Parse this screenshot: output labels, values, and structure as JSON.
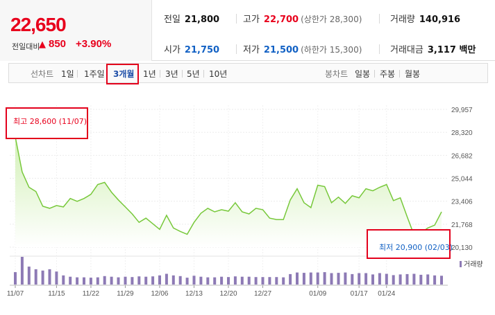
{
  "quote": {
    "price": "22,650",
    "change_label": "전일대비",
    "change_arrow": "▲",
    "change_value": "850",
    "change_percent": "+3.90%",
    "prev_close_label": "전일",
    "prev_close": "21,800",
    "high_label": "고가",
    "high": "22,700",
    "upper_limit": "(상한가 28,300)",
    "volume_label": "거래량",
    "volume": "140,916",
    "open_label": "시가",
    "open": "21,750",
    "low_label": "저가",
    "low": "21,500",
    "lower_limit": "(하한가 15,300)",
    "trade_value_label": "거래대금",
    "trade_value": "3,117 백만",
    "colors": {
      "up": "#e8001c",
      "down": "#1261c4"
    }
  },
  "toolbar": {
    "line_chart_label": "선차트",
    "periods": [
      "1일",
      "1주일",
      "3개월",
      "1년",
      "3년",
      "5년",
      "10년"
    ],
    "active_period": "3개월",
    "candle_chart_label": "봉차트",
    "candle_periods": [
      "일봉",
      "주봉",
      "월봉"
    ]
  },
  "annotations": {
    "high": "최고 28,600 (11/07)",
    "low": "최저 20,900 (02/03)"
  },
  "volume_legend": "거래량",
  "chart_data": {
    "type": "area",
    "x": [
      "11/07",
      "11/08",
      "11/09",
      "11/10",
      "11/11",
      "11/14",
      "11/15",
      "11/16",
      "11/17",
      "11/18",
      "11/21",
      "11/22",
      "11/23",
      "11/24",
      "11/25",
      "11/28",
      "11/29",
      "11/30",
      "12/01",
      "12/02",
      "12/05",
      "12/06",
      "12/07",
      "12/08",
      "12/09",
      "12/12",
      "12/13",
      "12/14",
      "12/15",
      "12/16",
      "12/19",
      "12/20",
      "12/21",
      "12/22",
      "12/23",
      "12/26",
      "12/27",
      "12/28",
      "12/29",
      "01/02",
      "01/03",
      "01/04",
      "01/05",
      "01/06",
      "01/09",
      "01/10",
      "01/11",
      "01/12",
      "01/13",
      "01/16",
      "01/17",
      "01/18",
      "01/19",
      "01/20",
      "01/24",
      "01/25",
      "01/26",
      "01/27",
      "01/30",
      "01/31",
      "02/01",
      "02/02",
      "02/03"
    ],
    "series": [
      {
        "name": "종가",
        "values": [
          28000,
          25500,
          24400,
          24100,
          23050,
          22900,
          23100,
          23000,
          23600,
          23400,
          23600,
          23900,
          24600,
          24750,
          24050,
          23500,
          23000,
          22500,
          21900,
          22200,
          21800,
          21400,
          22400,
          21500,
          21250,
          21050,
          21900,
          22550,
          22900,
          22650,
          22800,
          22700,
          23300,
          22650,
          22500,
          22900,
          22800,
          22200,
          22100,
          22100,
          23500,
          24300,
          23300,
          22950,
          24550,
          24450,
          23300,
          23700,
          23250,
          23800,
          23650,
          24300,
          24150,
          24400,
          24600,
          23450,
          23650,
          22300,
          21000,
          21150,
          21500,
          21700,
          22650
        ]
      }
    ],
    "volume": [
      38,
      85,
      55,
      47,
      43,
      47,
      40,
      28,
      24,
      22,
      22,
      21,
      22,
      26,
      24,
      22,
      24,
      23,
      25,
      24,
      25,
      28,
      33,
      28,
      26,
      21,
      27,
      24,
      22,
      22,
      24,
      23,
      25,
      24,
      24,
      23,
      23,
      23,
      23,
      22,
      32,
      37,
      36,
      37,
      37,
      38,
      35,
      36,
      37,
      32,
      35,
      35,
      31,
      35,
      33,
      29,
      31,
      32,
      33,
      30,
      31,
      28,
      27
    ],
    "y_ticks": [
      "29,957",
      "28,320",
      "26,682",
      "25,044",
      "23,406",
      "21,768",
      "20,130"
    ],
    "ylim": [
      20130,
      29957
    ],
    "x_ticks": [
      "11/07",
      "11/15",
      "11/22",
      "11/29",
      "12/06",
      "12/13",
      "12/20",
      "12/27",
      "01/09",
      "01/17",
      "01/24"
    ],
    "grid": true,
    "colors": {
      "line": "#77c83a",
      "fill_top": "#d2f0b6",
      "fill_bottom": "#ffffff",
      "volume": "#8d7ab5"
    }
  }
}
